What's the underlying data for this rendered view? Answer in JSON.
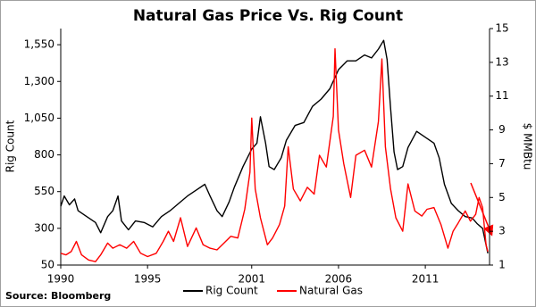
{
  "chart_data": {
    "type": "line",
    "title": "Natural Gas Price Vs. Rig Count",
    "ylabel": "Rig Count",
    "y2label": "$ MMBtu",
    "source": "Source: Bloomberg",
    "xlim": [
      1990,
      2014.7
    ],
    "xticks": [
      1990,
      1995,
      2001,
      2006,
      2011
    ],
    "ylim": [
      50,
      1660
    ],
    "yticks": [
      50,
      300,
      550,
      800,
      {
        "value": 1050,
        "label": "1,050"
      },
      {
        "value": 1300,
        "label": "1,300"
      },
      {
        "value": 1550,
        "label": "1,550"
      }
    ],
    "y2lim": [
      1,
      15
    ],
    "y2ticks": [
      1,
      3,
      5,
      7,
      9,
      11,
      13,
      15
    ],
    "grid": false,
    "legend": "bottom",
    "series": [
      {
        "name": "Rig Count",
        "color": "#000000",
        "x": [
          1990.0,
          1990.2,
          1990.5,
          1990.8,
          1991.0,
          1991.5,
          1992.0,
          1992.3,
          1992.7,
          1993.0,
          1993.3,
          1993.5,
          1993.9,
          1994.3,
          1994.8,
          1995.3,
          1995.8,
          1996.3,
          1996.8,
          1997.3,
          1997.8,
          1998.3,
          1998.6,
          1999.0,
          1999.3,
          1999.7,
          2000.0,
          2000.5,
          2001.0,
          2001.3,
          2001.5,
          2001.8,
          2002.0,
          2002.3,
          2002.7,
          2003.0,
          2003.5,
          2004.0,
          2004.5,
          2005.0,
          2005.5,
          2006.0,
          2006.5,
          2007.0,
          2007.5,
          2007.9,
          2008.3,
          2008.6,
          2008.8,
          2009.0,
          2009.2,
          2009.4,
          2009.7,
          2010.0,
          2010.5,
          2011.0,
          2011.5,
          2011.8,
          2012.1,
          2012.5,
          2012.9,
          2013.3,
          2013.7,
          2014.0,
          2014.3,
          2014.6
        ],
        "values": [
          450,
          520,
          460,
          500,
          420,
          380,
          340,
          270,
          380,
          420,
          520,
          350,
          290,
          350,
          340,
          310,
          380,
          420,
          470,
          520,
          560,
          600,
          520,
          420,
          380,
          480,
          580,
          720,
          840,
          880,
          1060,
          880,
          720,
          700,
          780,
          900,
          1000,
          1020,
          1130,
          1180,
          1250,
          1380,
          1440,
          1440,
          1480,
          1460,
          1520,
          1580,
          1450,
          1120,
          820,
          700,
          720,
          850,
          960,
          920,
          880,
          780,
          600,
          470,
          420,
          380,
          370,
          330,
          300,
          130
        ]
      },
      {
        "name": "Natural Gas",
        "color": "#ff0000",
        "axis": "y2",
        "x": [
          1990.0,
          1990.3,
          1990.6,
          1990.9,
          1991.2,
          1991.6,
          1992.0,
          1992.3,
          1992.7,
          1993.0,
          1993.4,
          1993.8,
          1994.2,
          1994.6,
          1995.0,
          1995.5,
          1995.9,
          1996.2,
          1996.5,
          1996.9,
          1997.3,
          1997.8,
          1998.2,
          1998.6,
          1999.0,
          1999.4,
          1999.8,
          2000.2,
          2000.6,
          2000.9,
          2001.0,
          2001.2,
          2001.5,
          2001.9,
          2002.2,
          2002.6,
          2002.9,
          2003.1,
          2003.4,
          2003.8,
          2004.2,
          2004.6,
          2004.9,
          2005.3,
          2005.7,
          2005.8,
          2006.0,
          2006.3,
          2006.7,
          2007.0,
          2007.5,
          2007.9,
          2008.3,
          2008.5,
          2008.7,
          2009.0,
          2009.3,
          2009.7,
          2010.0,
          2010.4,
          2010.8,
          2011.1,
          2011.5,
          2011.9,
          2012.3,
          2012.6,
          2012.9,
          2013.3,
          2013.6,
          2013.9,
          2014.1,
          2014.3,
          2014.5,
          2014.6
        ],
        "values": [
          1.7,
          1.6,
          1.8,
          2.4,
          1.6,
          1.3,
          1.2,
          1.6,
          2.3,
          2.0,
          2.2,
          2.0,
          2.4,
          1.7,
          1.5,
          1.7,
          2.4,
          3.0,
          2.4,
          3.8,
          2.1,
          3.2,
          2.2,
          2.0,
          1.9,
          2.3,
          2.7,
          2.6,
          4.3,
          6.5,
          9.7,
          5.5,
          3.8,
          2.2,
          2.6,
          3.4,
          4.5,
          8.0,
          5.5,
          4.8,
          5.6,
          5.2,
          7.5,
          6.8,
          9.8,
          13.8,
          9.0,
          7.0,
          5.0,
          7.5,
          7.8,
          6.8,
          9.5,
          13.2,
          8.0,
          5.5,
          3.8,
          3.0,
          5.8,
          4.2,
          3.9,
          4.3,
          4.4,
          3.4,
          2.0,
          3.0,
          3.5,
          4.2,
          3.6,
          4.0,
          5.0,
          4.4,
          2.2,
          1.8
        ]
      }
    ]
  }
}
